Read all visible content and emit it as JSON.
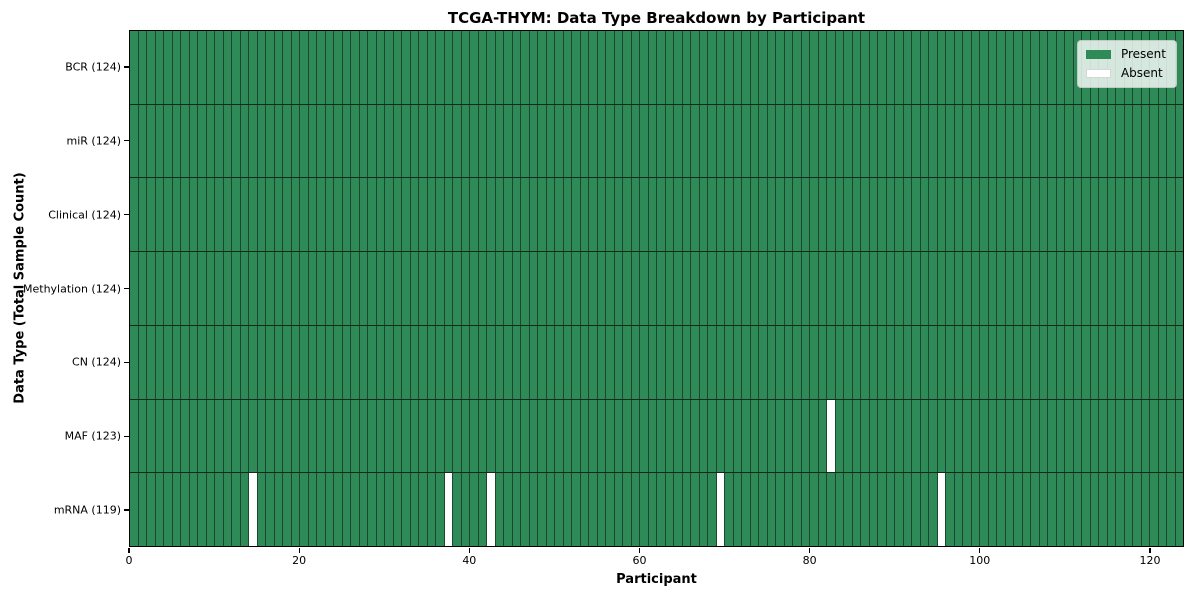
{
  "colors": {
    "present": "#2e8b57",
    "absent": "#ffffff",
    "cell_edge": "#1c4630",
    "row_separator": "#13291c",
    "axis": "#000000"
  },
  "chart_data": {
    "type": "heatmap",
    "title": "TCGA-THYM: Data Type Breakdown by Participant",
    "xlabel": "Participant",
    "ylabel": "Data Type (Total Sample Count)",
    "n_participants": 124,
    "x_axis": {
      "ticks": [
        0,
        20,
        40,
        60,
        80,
        100,
        120
      ],
      "range": [
        0,
        124
      ]
    },
    "rows": [
      {
        "label": "BCR (124)",
        "data_type": "BCR",
        "present_count": 124,
        "absent_participants": []
      },
      {
        "label": "miR (124)",
        "data_type": "miR",
        "present_count": 124,
        "absent_participants": []
      },
      {
        "label": "Clinical (124)",
        "data_type": "Clinical",
        "present_count": 124,
        "absent_participants": []
      },
      {
        "label": "Methylation (124)",
        "data_type": "Methylation",
        "present_count": 124,
        "absent_participants": []
      },
      {
        "label": "CN (124)",
        "data_type": "CN",
        "present_count": 124,
        "absent_participants": []
      },
      {
        "label": "MAF (123)",
        "data_type": "MAF",
        "present_count": 123,
        "absent_participants": [
          82
        ]
      },
      {
        "label": "mRNA (119)",
        "data_type": "mRNA",
        "present_count": 119,
        "absent_participants": [
          14,
          37,
          42,
          69,
          95
        ]
      }
    ],
    "legend": [
      {
        "label": "Present",
        "color": "#2e8b57",
        "key": "present"
      },
      {
        "label": "Absent",
        "color": "#ffffff",
        "key": "absent"
      }
    ],
    "legend_position": "upper right",
    "grid": false
  }
}
